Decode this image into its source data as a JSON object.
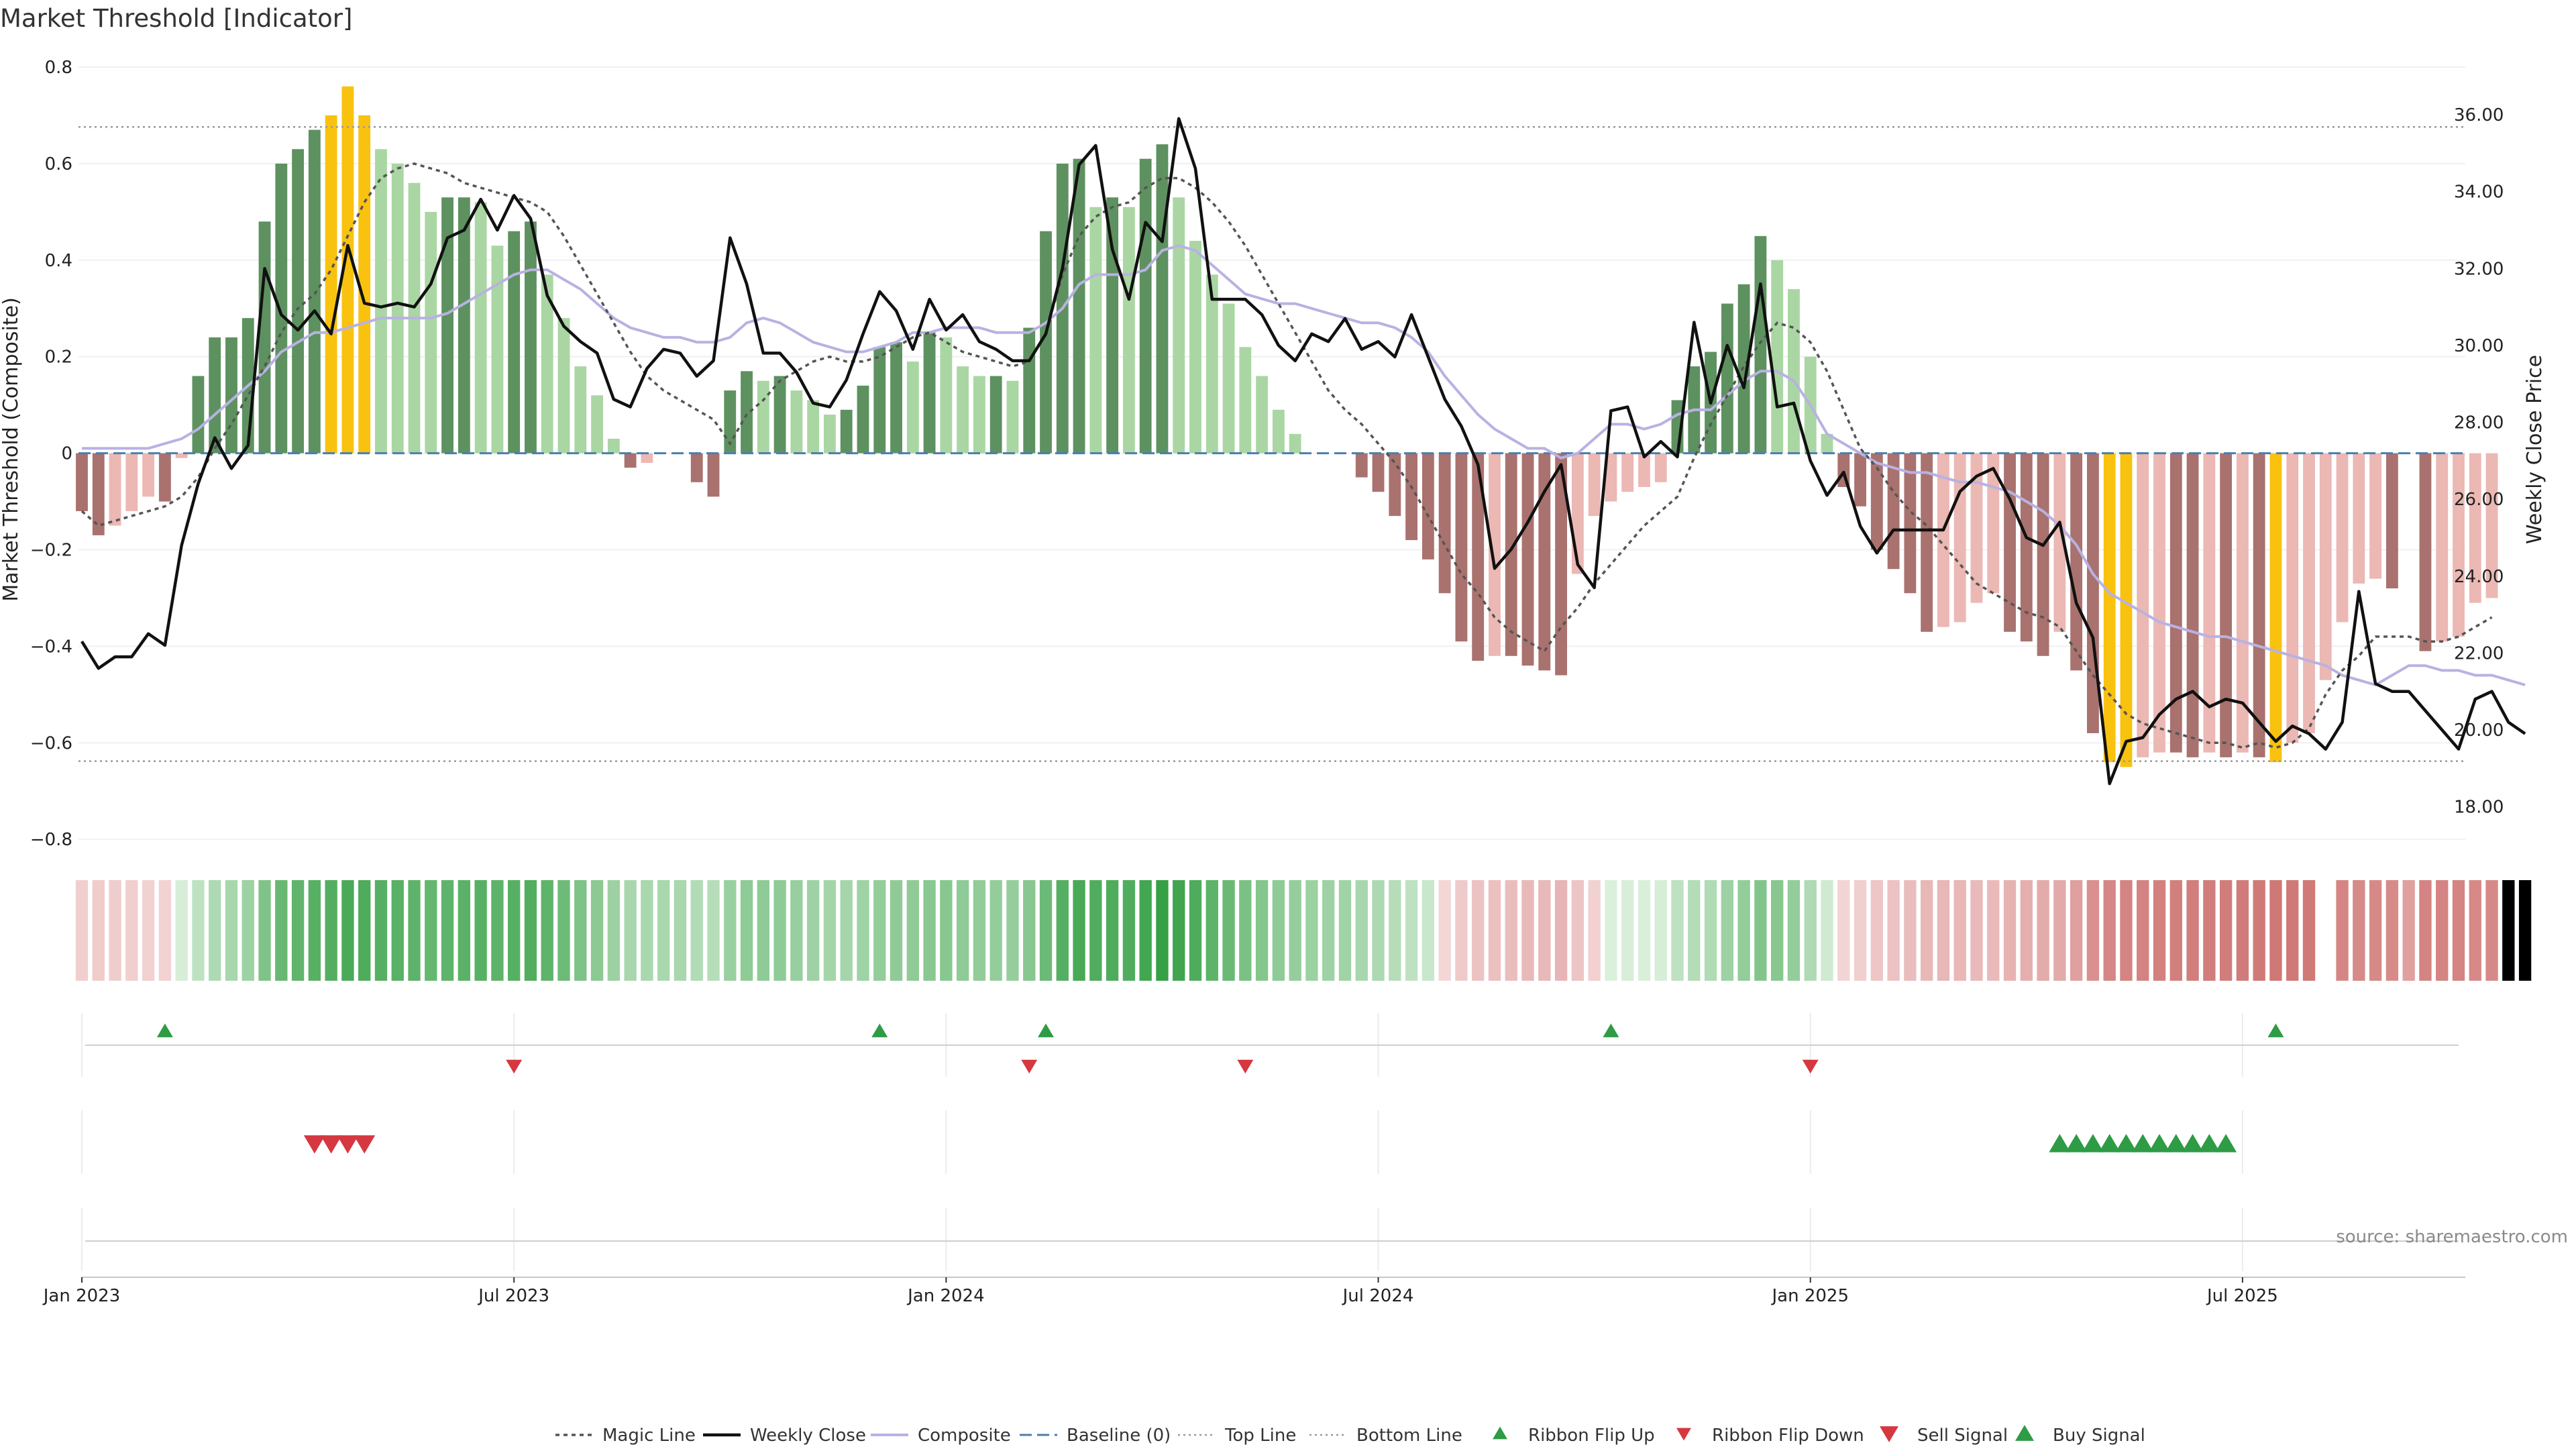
{
  "chart_data": {
    "type": "bar",
    "title": "Market Threshold [Indicator]",
    "ylabel_left": "Market Threshold (Composite)",
    "ylabel_right": "Weekly Close Price",
    "left_ylim": [
      -0.84,
      0.8
    ],
    "left_ticks": [
      "0.8",
      "0.6",
      "0.4",
      "0.2",
      "0",
      "−0.2",
      "−0.4",
      "−0.6",
      "−0.8"
    ],
    "left_tick_values": [
      0.8,
      0.6,
      0.4,
      0.2,
      0,
      -0.2,
      -0.4,
      -0.6,
      -0.8
    ],
    "right_ylim": [
      16.65,
      37.24
    ],
    "right_ticks": [
      "36.00",
      "34.00",
      "32.00",
      "30.00",
      "28.00",
      "26.00",
      "24.00",
      "22.00",
      "20.00",
      "18.00"
    ],
    "right_tick_values": [
      36,
      34,
      32,
      30,
      28,
      26,
      24,
      22,
      20,
      18
    ],
    "x_ticks": [
      "Jan 2023",
      "Jul 2023",
      "Jan 2024",
      "Jul 2024",
      "Jan 2025",
      "Jul 2025"
    ],
    "x_tick_weeks": [
      0,
      26,
      52,
      78,
      104,
      130
    ],
    "top_line": 0.676,
    "bottom_line": -0.638,
    "weeks": 144,
    "composite_bars": [
      -0.12,
      -0.17,
      -0.15,
      -0.12,
      -0.09,
      -0.1,
      -0.01,
      0.16,
      0.24,
      0.24,
      0.28,
      0.48,
      0.6,
      0.63,
      0.67,
      0.7,
      0.76,
      0.7,
      0.63,
      0.6,
      0.56,
      0.5,
      0.53,
      0.53,
      0.52,
      0.43,
      0.46,
      0.48,
      0.37,
      0.28,
      0.18,
      0.12,
      0.03,
      -0.03,
      -0.02,
      0,
      0,
      -0.06,
      -0.09,
      0.13,
      0.17,
      0.15,
      0.16,
      0.13,
      0.11,
      0.08,
      0.09,
      0.14,
      0.22,
      0.23,
      0.19,
      0.25,
      0.24,
      0.18,
      0.16,
      0.16,
      0.15,
      0.26,
      0.46,
      0.6,
      0.61,
      0.51,
      0.53,
      0.51,
      0.61,
      0.64,
      0.53,
      0.44,
      0.37,
      0.31,
      0.22,
      0.16,
      0.09,
      0.04,
      0,
      0,
      0,
      -0.05,
      -0.08,
      -0.13,
      -0.18,
      -0.22,
      -0.29,
      -0.39,
      -0.43,
      -0.42,
      -0.42,
      -0.44,
      -0.45,
      -0.46,
      -0.25,
      -0.13,
      -0.1,
      -0.08,
      -0.07,
      -0.06,
      0.11,
      0.18,
      0.21,
      0.31,
      0.35,
      0.45,
      0.4,
      0.34,
      0.2,
      0.04,
      -0.07,
      -0.11,
      -0.2,
      -0.24,
      -0.29,
      -0.37,
      -0.36,
      -0.35,
      -0.31,
      -0.29,
      -0.37,
      -0.39,
      -0.42,
      -0.37,
      -0.45,
      -0.58,
      -0.64,
      -0.65,
      -0.63,
      -0.62,
      -0.62,
      -0.63,
      -0.62,
      -0.63,
      -0.62,
      -0.63,
      -0.64,
      -0.6,
      -0.58,
      -0.47,
      -0.35,
      -0.27,
      -0.26,
      -0.28,
      0,
      -0.41,
      -0.39,
      -0.38,
      -0.31,
      -0.3
    ],
    "weekly_close": [
      22.3,
      21.6,
      21.9,
      21.9,
      22.5,
      22.2,
      24.8,
      26.4,
      27.6,
      26.8,
      27.4,
      32.0,
      30.8,
      30.4,
      30.9,
      30.3,
      32.6,
      31.1,
      31.0,
      31.1,
      31.0,
      31.6,
      32.8,
      33.0,
      33.8,
      33.0,
      33.9,
      33.3,
      31.3,
      30.5,
      30.1,
      29.8,
      28.6,
      28.4,
      29.4,
      29.9,
      29.8,
      29.2,
      29.6,
      32.8,
      31.6,
      29.8,
      29.8,
      29.3,
      28.5,
      28.4,
      29.1,
      30.3,
      31.4,
      30.9,
      29.9,
      31.2,
      30.4,
      30.8,
      30.1,
      29.9,
      29.6,
      29.6,
      30.3,
      32.0,
      34.7,
      35.2,
      32.5,
      31.2,
      33.2,
      32.7,
      35.9,
      34.6,
      31.2,
      31.2,
      31.2,
      30.8,
      30.0,
      29.6,
      30.3,
      30.1,
      30.7,
      29.9,
      30.1,
      29.7,
      30.8,
      29.7,
      28.6,
      27.9,
      26.9,
      24.2,
      24.7,
      25.4,
      26.2,
      26.9,
      24.3,
      23.7,
      28.3,
      28.4,
      27.1,
      27.5,
      27.1,
      30.6,
      28.5,
      30.0,
      28.9,
      31.6,
      28.4,
      28.5,
      27.0,
      26.1,
      26.7,
      25.3,
      24.6,
      25.2,
      25.2,
      25.2,
      25.2,
      26.2,
      26.6,
      26.8,
      26.0,
      25.0,
      24.8,
      25.4,
      23.3,
      22.4,
      18.6,
      19.7,
      19.8,
      20.4,
      20.8,
      21.0,
      20.6,
      20.8,
      20.7,
      20.2,
      19.7,
      20.1,
      19.9,
      19.5,
      20.2,
      23.6,
      21.2,
      21.0,
      21.0,
      20.5,
      20.0,
      19.5,
      20.8,
      21.0,
      20.2,
      19.9
    ],
    "magic_line": [
      -0.12,
      -0.15,
      -0.14,
      -0.13,
      -0.12,
      -0.11,
      -0.09,
      -0.05,
      0.01,
      0.06,
      0.12,
      0.18,
      0.25,
      0.3,
      0.33,
      0.38,
      0.45,
      0.52,
      0.57,
      0.59,
      0.6,
      0.59,
      0.58,
      0.56,
      0.55,
      0.54,
      0.53,
      0.52,
      0.5,
      0.45,
      0.39,
      0.33,
      0.27,
      0.21,
      0.16,
      0.13,
      0.11,
      0.09,
      0.07,
      0.02,
      0.08,
      0.11,
      0.15,
      0.17,
      0.19,
      0.2,
      0.19,
      0.19,
      0.2,
      0.22,
      0.24,
      0.25,
      0.23,
      0.21,
      0.2,
      0.19,
      0.18,
      0.19,
      0.25,
      0.37,
      0.45,
      0.49,
      0.51,
      0.52,
      0.55,
      0.57,
      0.57,
      0.55,
      0.52,
      0.48,
      0.43,
      0.37,
      0.31,
      0.25,
      0.19,
      0.13,
      0.09,
      0.06,
      0.02,
      -0.02,
      -0.07,
      -0.13,
      -0.19,
      -0.25,
      -0.29,
      -0.34,
      -0.37,
      -0.39,
      -0.41,
      -0.36,
      -0.32,
      -0.27,
      -0.23,
      -0.19,
      -0.15,
      -0.12,
      -0.09,
      -0.01,
      0.06,
      0.12,
      0.18,
      0.23,
      0.27,
      0.26,
      0.23,
      0.17,
      0.09,
      0.01,
      -0.03,
      -0.08,
      -0.12,
      -0.15,
      -0.19,
      -0.23,
      -0.27,
      -0.29,
      -0.31,
      -0.33,
      -0.34,
      -0.36,
      -0.41,
      -0.46,
      -0.5,
      -0.54,
      -0.56,
      -0.57,
      -0.58,
      -0.59,
      -0.6,
      -0.6,
      -0.61,
      -0.6,
      -0.61,
      -0.6,
      -0.57,
      -0.5,
      -0.45,
      -0.42,
      -0.38,
      -0.38,
      -0.38,
      -0.39,
      -0.39,
      -0.38,
      -0.36,
      -0.34
    ],
    "composite_line": [
      0.01,
      0.01,
      0.01,
      0.01,
      0.01,
      0.02,
      0.03,
      0.05,
      0.08,
      0.11,
      0.14,
      0.17,
      0.21,
      0.23,
      0.25,
      0.25,
      0.26,
      0.27,
      0.28,
      0.28,
      0.28,
      0.28,
      0.29,
      0.31,
      0.33,
      0.35,
      0.37,
      0.38,
      0.38,
      0.36,
      0.34,
      0.31,
      0.28,
      0.26,
      0.25,
      0.24,
      0.24,
      0.23,
      0.23,
      0.24,
      0.27,
      0.28,
      0.27,
      0.25,
      0.23,
      0.22,
      0.21,
      0.21,
      0.22,
      0.23,
      0.25,
      0.25,
      0.26,
      0.26,
      0.26,
      0.25,
      0.25,
      0.25,
      0.27,
      0.3,
      0.35,
      0.37,
      0.37,
      0.37,
      0.38,
      0.42,
      0.43,
      0.42,
      0.39,
      0.36,
      0.33,
      0.32,
      0.31,
      0.31,
      0.3,
      0.29,
      0.28,
      0.27,
      0.27,
      0.26,
      0.24,
      0.21,
      0.16,
      0.12,
      0.08,
      0.05,
      0.03,
      0.01,
      0.01,
      -0.01,
      0.0,
      0.03,
      0.06,
      0.06,
      0.05,
      0.06,
      0.08,
      0.09,
      0.09,
      0.12,
      0.15,
      0.17,
      0.17,
      0.15,
      0.1,
      0.04,
      0.02,
      0.0,
      -0.02,
      -0.03,
      -0.04,
      -0.04,
      -0.05,
      -0.06,
      -0.06,
      -0.07,
      -0.08,
      -0.1,
      -0.12,
      -0.15,
      -0.19,
      -0.25,
      -0.29,
      -0.31,
      -0.33,
      -0.35,
      -0.36,
      -0.37,
      -0.38,
      -0.38,
      -0.39,
      -0.4,
      -0.41,
      -0.42,
      -0.43,
      -0.44,
      -0.46,
      -0.47,
      -0.48,
      -0.46,
      -0.44,
      -0.44,
      -0.45,
      -0.45,
      -0.46,
      -0.46,
      -0.47,
      -0.48
    ],
    "ribbon_flip_up_weeks": [
      5,
      48,
      58,
      92,
      132
    ],
    "ribbon_flip_down_weeks": [
      26,
      57,
      70,
      104
    ],
    "sell_signal_weeks": [
      14,
      15,
      16,
      17
    ],
    "buy_signal_weeks": [
      119,
      120,
      121,
      122,
      123,
      124,
      125,
      126,
      127,
      128,
      129
    ],
    "source": "source: sharemaestro.com",
    "legend": [
      {
        "label": "Magic Line",
        "kind": "dotted"
      },
      {
        "label": "Weekly Close",
        "kind": "solid"
      },
      {
        "label": "Composite",
        "kind": "lavender"
      },
      {
        "label": "Baseline (0)",
        "kind": "dashed"
      },
      {
        "label": "Top Line",
        "kind": "dotted-light"
      },
      {
        "label": "Bottom Line",
        "kind": "dotted-light"
      },
      {
        "label": "Ribbon Flip Up",
        "kind": "tri-up-small"
      },
      {
        "label": "Ribbon Flip Down",
        "kind": "tri-down-small"
      },
      {
        "label": "Sell Signal",
        "kind": "tri-down-big"
      },
      {
        "label": "Buy Signal",
        "kind": "tri-up-big"
      }
    ],
    "colors": {
      "dark_green": "#5e9160",
      "light_green": "#aad6a3",
      "dark_red": "#a9726e",
      "light_red": "#ebb8b4",
      "amber": "#f9c20e",
      "price_line": "#111111",
      "magic_line": "#555555",
      "composite_line": "#b8b2e2",
      "baseline": "#4a7fae",
      "up_marker": "#2e9b45",
      "down_marker": "#d53840"
    }
  }
}
